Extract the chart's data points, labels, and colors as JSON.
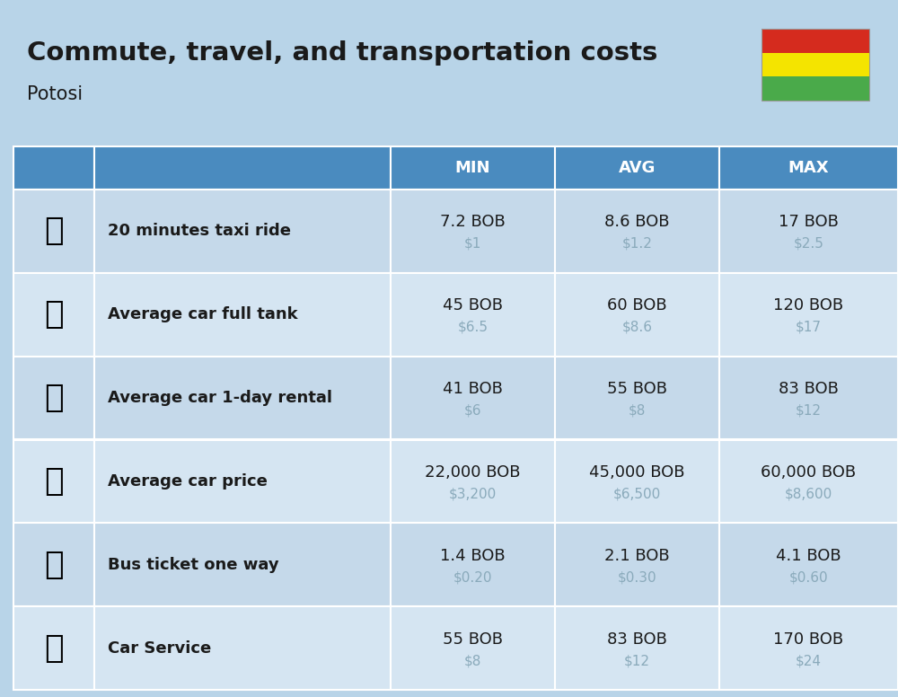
{
  "title": "Commute, travel, and transportation costs",
  "subtitle": "Potosi",
  "background_color": "#b8d4e8",
  "header_bg": "#4a8bbf",
  "row_bg_odd": "#c5d9ea",
  "row_bg_even": "#d5e5f2",
  "header_text_color": "#ffffff",
  "label_color": "#1a1a1a",
  "value_color": "#1a1a1a",
  "usd_color": "#8aaabb",
  "rows": [
    {
      "label": "20 minutes taxi ride",
      "min_bob": "7.2 BOB",
      "min_usd": "$1",
      "avg_bob": "8.6 BOB",
      "avg_usd": "$1.2",
      "max_bob": "17 BOB",
      "max_usd": "$2.5"
    },
    {
      "label": "Average car full tank",
      "min_bob": "45 BOB",
      "min_usd": "$6.5",
      "avg_bob": "60 BOB",
      "avg_usd": "$8.6",
      "max_bob": "120 BOB",
      "max_usd": "$17"
    },
    {
      "label": "Average car 1-day rental",
      "min_bob": "41 BOB",
      "min_usd": "$6",
      "avg_bob": "55 BOB",
      "avg_usd": "$8",
      "max_bob": "83 BOB",
      "max_usd": "$12"
    },
    {
      "label": "Average car price",
      "min_bob": "22,000 BOB",
      "min_usd": "$3,200",
      "avg_bob": "45,000 BOB",
      "avg_usd": "$6,500",
      "max_bob": "60,000 BOB",
      "max_usd": "$8,600"
    },
    {
      "label": "Bus ticket one way",
      "min_bob": "1.4 BOB",
      "min_usd": "$0.20",
      "avg_bob": "2.1 BOB",
      "avg_usd": "$0.30",
      "max_bob": "4.1 BOB",
      "max_usd": "$0.60"
    },
    {
      "label": "Car Service",
      "min_bob": "55 BOB",
      "min_usd": "$8",
      "avg_bob": "83 BOB",
      "avg_usd": "$12",
      "max_bob": "170 BOB",
      "max_usd": "$24"
    }
  ],
  "emoji_list": [
    "🚕",
    "⛽",
    "🚗",
    "🚗",
    "🚌",
    "🚗"
  ],
  "flag_stripes": [
    "#d52b1e",
    "#f4e400",
    "#4aaa4a"
  ],
  "title_fontsize": 21,
  "subtitle_fontsize": 15,
  "header_fontsize": 13,
  "label_fontsize": 13,
  "value_fontsize": 13,
  "usd_fontsize": 11,
  "emoji_fontsize": 26
}
